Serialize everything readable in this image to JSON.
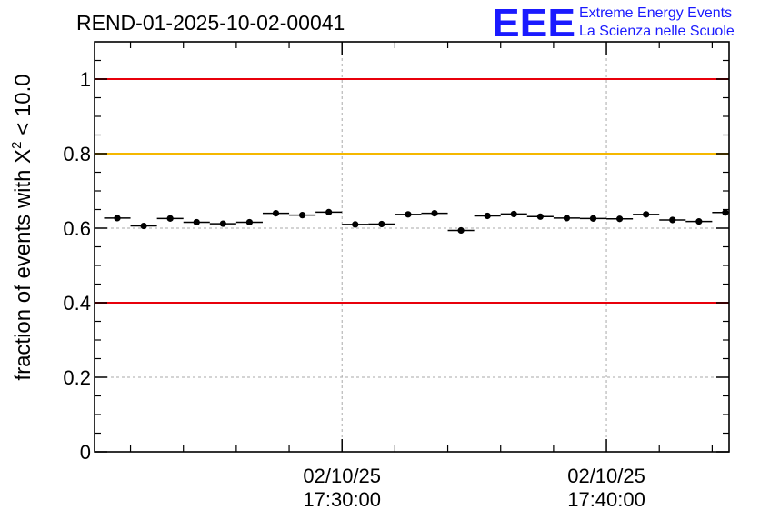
{
  "header": {
    "run_title": "REND-01-2025-10-02-00041",
    "logo_text": "EEE",
    "logo_line1": "Extreme Energy Events",
    "logo_line2": "La Scienza nelle Scuole"
  },
  "chart_data": {
    "type": "scatter",
    "title": "REND-01-2025-10-02-00041",
    "ylabel_main": "fraction of events with X",
    "ylabel_sup": "2",
    "ylabel_rest": " < 10.0",
    "xlabel": "",
    "ylim": [
      0,
      1.1
    ],
    "xlim_minutes": [
      -9.36,
      14.64
    ],
    "y_ticks": [
      {
        "value": 0,
        "label": "0"
      },
      {
        "value": 0.2,
        "label": "0.2"
      },
      {
        "value": 0.4,
        "label": "0.4"
      },
      {
        "value": 0.6,
        "label": "0.6"
      },
      {
        "value": 0.8,
        "label": "0.8"
      },
      {
        "value": 1.0,
        "label": "1"
      }
    ],
    "x_ticks": [
      {
        "minutes": 0,
        "date": "02/10/25",
        "time": "17:30:00"
      },
      {
        "minutes": 10,
        "date": "02/10/25",
        "time": "17:40:00"
      }
    ],
    "x_minor_ticks_minutes": [
      -8,
      -6,
      -4,
      -2,
      2,
      4,
      6,
      8,
      12,
      14
    ],
    "grid": true,
    "reference_lines": [
      {
        "name": "upper-limit",
        "value": 1.0,
        "color": "#e8000b"
      },
      {
        "name": "warning-level",
        "value": 0.8,
        "color": "#f5b800"
      },
      {
        "name": "lower-limit",
        "value": 0.4,
        "color": "#e8000b"
      }
    ],
    "bin_halfwidth_minutes": 0.5,
    "series": [
      {
        "name": "fraction",
        "x_minutes": [
          -8.5,
          -7.5,
          -6.5,
          -5.5,
          -4.5,
          -3.5,
          -2.5,
          -1.5,
          -0.5,
          0.5,
          1.5,
          2.5,
          3.5,
          4.5,
          5.5,
          6.5,
          7.5,
          8.5,
          9.5,
          10.5,
          11.5,
          12.5,
          13.5,
          14.5
        ],
        "values": [
          0.627,
          0.606,
          0.626,
          0.616,
          0.612,
          0.616,
          0.64,
          0.635,
          0.643,
          0.61,
          0.611,
          0.637,
          0.64,
          0.594,
          0.633,
          0.638,
          0.631,
          0.627,
          0.626,
          0.625,
          0.637,
          0.622,
          0.618,
          0.642
        ],
        "errors": [
          0.006,
          0.006,
          0.006,
          0.006,
          0.006,
          0.006,
          0.006,
          0.006,
          0.006,
          0.006,
          0.006,
          0.006,
          0.006,
          0.006,
          0.006,
          0.006,
          0.006,
          0.006,
          0.006,
          0.006,
          0.006,
          0.006,
          0.006,
          0.006
        ]
      }
    ]
  }
}
